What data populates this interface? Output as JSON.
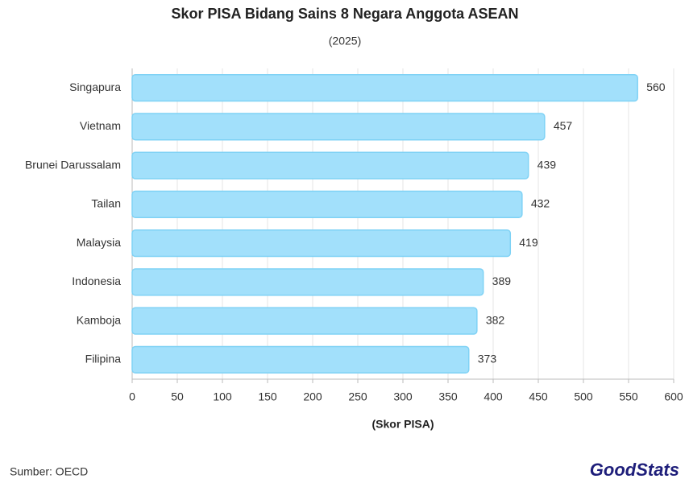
{
  "chart_data": {
    "type": "bar",
    "orientation": "horizontal",
    "title": "Skor PISA Bidang Sains 8 Negara Anggota ASEAN",
    "subtitle": "(2025)",
    "x_label": "(Skor PISA)",
    "source": "Sumber: OECD",
    "brand": "GoodStats",
    "categories": [
      "Singapura",
      "Vietnam",
      "Brunei Darussalam",
      "Tailan",
      "Malaysia",
      "Indonesia",
      "Kamboja",
      "Filipina"
    ],
    "values": [
      560,
      457,
      439,
      432,
      419,
      389,
      382,
      373
    ],
    "color": "#a2e0fb",
    "edge_color": "#7fd2f5",
    "xlim": [
      0,
      600
    ],
    "xticks": [
      0,
      50,
      100,
      150,
      200,
      250,
      300,
      350,
      400,
      450,
      500,
      550,
      600
    ],
    "grid": true
  }
}
